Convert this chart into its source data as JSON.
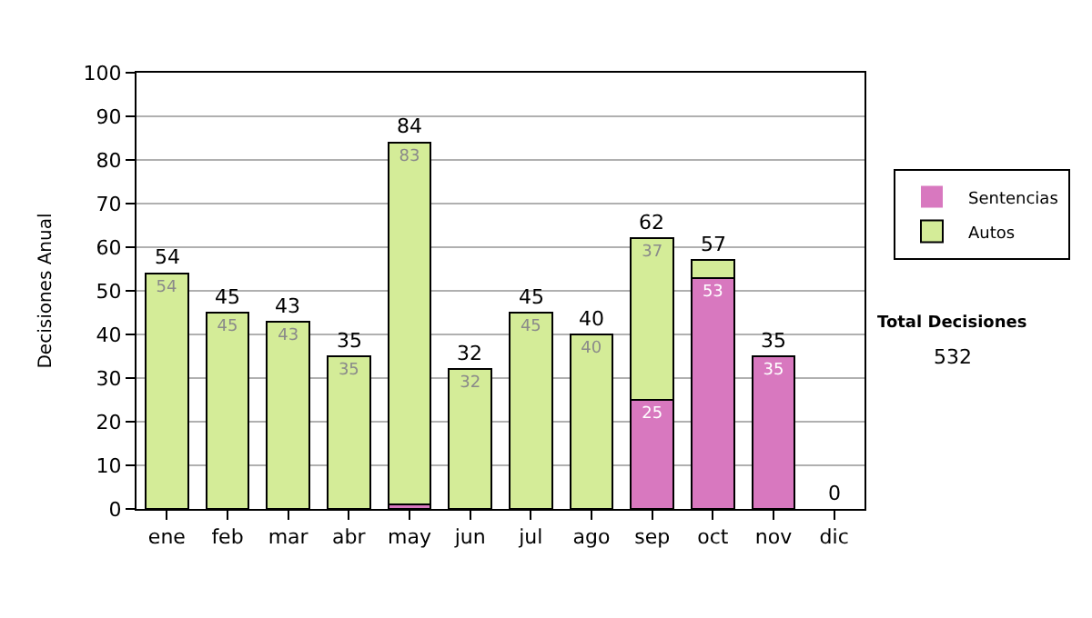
{
  "chart_data": {
    "type": "bar",
    "stacked": true,
    "ylabel": "Decisiones Anual",
    "categories": [
      "ene",
      "feb",
      "mar",
      "abr",
      "may",
      "jun",
      "jul",
      "ago",
      "sep",
      "oct",
      "nov",
      "dic"
    ],
    "series": [
      {
        "name": "Sentencias",
        "color": "#d878bf",
        "values": [
          0,
          0,
          0,
          0,
          1,
          0,
          0,
          0,
          25,
          53,
          35,
          0
        ],
        "value_labels": [
          null,
          null,
          null,
          null,
          null,
          null,
          null,
          null,
          "25",
          "53",
          "35",
          null
        ]
      },
      {
        "name": "Autos",
        "color": "#d4ec98",
        "values": [
          54,
          45,
          43,
          35,
          83,
          32,
          45,
          40,
          37,
          4,
          0,
          0
        ],
        "value_labels": [
          "54",
          "45",
          "43",
          "35",
          "83",
          "32",
          "45",
          "40",
          "37",
          null,
          null,
          null
        ]
      }
    ],
    "totals": [
      "54",
      "45",
      "43",
      "35",
      "84",
      "32",
      "45",
      "40",
      "62",
      "57",
      "35",
      "0"
    ],
    "ylim": [
      0,
      100
    ],
    "yticks": [
      0,
      10,
      20,
      30,
      40,
      50,
      60,
      70,
      80,
      90,
      100
    ],
    "grid": "y",
    "legend": "right",
    "annotations": [
      "Total Decisiones",
      "532"
    ]
  }
}
